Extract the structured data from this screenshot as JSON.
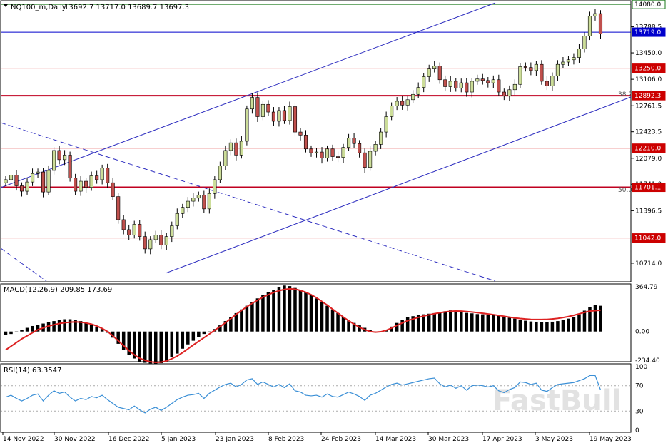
{
  "header": {
    "symbol": "NQ100_m,Daily",
    "ohlc": "13692.7 13717.0 13689.7 13697.3"
  },
  "macd_label": "MACD(12,26,9) 209.85 173.69",
  "rsi_label": "RSI(14) 63.3547",
  "watermark": "FastBull",
  "fib_labels": [
    "38.2",
    "50.0"
  ],
  "colors": {
    "bull_body": "#ccdd99",
    "bear_body": "#c0504d",
    "h_line": "#e04040",
    "channel": "#2e2ec0",
    "macd_hist": "#000000",
    "macd_signal": "#dd2222",
    "rsi": "#3a8fd6",
    "price_tag_bg": "#cc0000",
    "current_tag_bg": "#0000cc",
    "top_tag_bg": "#1a7a1a"
  },
  "chart_data": {
    "type": "candlestick",
    "price_axis": {
      "ticks": [
        13788.5,
        13450.0,
        13106.0,
        12761.5,
        12423.5,
        12079.0,
        11741.0,
        11396.5,
        10714.0
      ],
      "range": [
        10500,
        14100
      ]
    },
    "tagged_levels": [
      {
        "value": 14080.0,
        "kind": "top"
      },
      {
        "value": 13719.0,
        "kind": "current"
      },
      {
        "value": 13250.0,
        "kind": "level"
      },
      {
        "value": 12892.3,
        "kind": "level"
      },
      {
        "value": 12210.0,
        "kind": "level"
      },
      {
        "value": 11701.1,
        "kind": "level"
      },
      {
        "value": 11042.0,
        "kind": "level"
      }
    ],
    "x_labels": [
      "14 Nov 2022",
      "30 Nov 2022",
      "16 Dec 2022",
      "5 Jan 2023",
      "23 Jan 2023",
      "8 Feb 2023",
      "24 Feb 2023",
      "14 Mar 2023",
      "30 Mar 2023",
      "17 Apr 2023",
      "3 May 2023",
      "19 May 2023"
    ],
    "close": [
      11800,
      11860,
      11720,
      11650,
      11770,
      11880,
      11900,
      11640,
      11920,
      12180,
      12060,
      12120,
      11820,
      11650,
      11780,
      11700,
      11850,
      11800,
      11950,
      11760,
      11580,
      11280,
      11150,
      11080,
      11220,
      11060,
      10900,
      11020,
      11080,
      10950,
      11060,
      11200,
      11360,
      11440,
      11520,
      11560,
      11600,
      11420,
      11620,
      11800,
      11980,
      12180,
      12280,
      12120,
      12300,
      12720,
      12870,
      12620,
      12780,
      12680,
      12560,
      12700,
      12570,
      12750,
      12420,
      12380,
      12200,
      12150,
      12160,
      12080,
      12200,
      12100,
      12090,
      12220,
      12340,
      12270,
      12150,
      11960,
      12170,
      12260,
      12420,
      12620,
      12760,
      12820,
      12770,
      12840,
      12910,
      13000,
      13140,
      13240,
      13280,
      13100,
      13010,
      13080,
      12990,
      13060,
      12940,
      13080,
      13110,
      13090,
      13060,
      13100,
      12940,
      12890,
      12970,
      13040,
      13270,
      13260,
      13220,
      13300,
      13080,
      13020,
      13150,
      13300,
      13330,
      13360,
      13390,
      13500,
      13670,
      13930,
      13960,
      13697
    ],
    "macd": {
      "range": [
        -234.4,
        364.79
      ],
      "ticks": [
        364.79,
        0.0,
        -234.4
      ],
      "histogram": [
        -30,
        -20,
        -5,
        15,
        30,
        45,
        55,
        65,
        75,
        85,
        95,
        100,
        100,
        95,
        85,
        70,
        55,
        40,
        20,
        -10,
        -50,
        -100,
        -150,
        -190,
        -220,
        -245,
        -255,
        -260,
        -262,
        -258,
        -240,
        -210,
        -180,
        -140,
        -105,
        -75,
        -45,
        -20,
        0,
        20,
        50,
        85,
        120,
        150,
        180,
        210,
        240,
        270,
        295,
        320,
        340,
        360,
        375,
        370,
        355,
        340,
        320,
        300,
        270,
        240,
        210,
        180,
        150,
        120,
        90,
        70,
        50,
        30,
        10,
        -5,
        0,
        15,
        40,
        70,
        95,
        115,
        125,
        135,
        140,
        145,
        150,
        158,
        165,
        172,
        170,
        160,
        152,
        148,
        142,
        140,
        138,
        135,
        128,
        120,
        112,
        105,
        95,
        88,
        82,
        80,
        78,
        78,
        80,
        85,
        95,
        105,
        120,
        140,
        170,
        200,
        215,
        209.85
      ],
      "signal": [
        -150,
        -120,
        -90,
        -60,
        -35,
        -10,
        15,
        30,
        45,
        55,
        65,
        72,
        76,
        78,
        76,
        70,
        60,
        45,
        25,
        0,
        -35,
        -75,
        -115,
        -155,
        -190,
        -218,
        -235,
        -247,
        -252,
        -250,
        -240,
        -222,
        -200,
        -172,
        -142,
        -110,
        -80,
        -50,
        -20,
        10,
        40,
        72,
        105,
        140,
        172,
        202,
        230,
        255,
        280,
        300,
        318,
        333,
        343,
        348,
        345,
        335,
        320,
        300,
        275,
        245,
        215,
        182,
        150,
        118,
        88,
        60,
        35,
        15,
        0,
        -5,
        -2,
        10,
        28,
        50,
        70,
        88,
        102,
        115,
        126,
        136,
        145,
        153,
        160,
        165,
        167,
        166,
        163,
        159,
        154,
        149,
        143,
        137,
        131,
        124,
        117,
        111,
        106,
        102,
        99,
        98,
        98,
        99,
        102,
        107,
        114,
        122,
        132,
        144,
        156,
        166,
        170,
        173.69
      ]
    },
    "rsi": {
      "range": [
        0,
        100
      ],
      "ticks": [
        100,
        70,
        30,
        0
      ],
      "values": [
        52,
        55,
        50,
        46,
        50,
        55,
        57,
        46,
        55,
        62,
        58,
        60,
        52,
        46,
        50,
        48,
        53,
        51,
        55,
        48,
        42,
        36,
        34,
        32,
        38,
        32,
        27,
        33,
        36,
        31,
        36,
        42,
        48,
        52,
        55,
        56,
        58,
        50,
        58,
        63,
        68,
        72,
        74,
        68,
        72,
        79,
        81,
        72,
        76,
        72,
        68,
        72,
        67,
        73,
        62,
        60,
        55,
        54,
        55,
        52,
        57,
        53,
        52,
        56,
        60,
        57,
        53,
        47,
        55,
        58,
        63,
        68,
        72,
        74,
        71,
        73,
        75,
        77,
        79,
        81,
        82,
        73,
        68,
        71,
        66,
        70,
        63,
        70,
        71,
        70,
        68,
        70,
        62,
        59,
        64,
        67,
        76,
        75,
        72,
        74,
        63,
        61,
        67,
        72,
        73,
        74,
        75,
        78,
        81,
        86,
        86,
        63.35
      ],
      "dashed_levels": [
        70,
        30
      ]
    }
  }
}
